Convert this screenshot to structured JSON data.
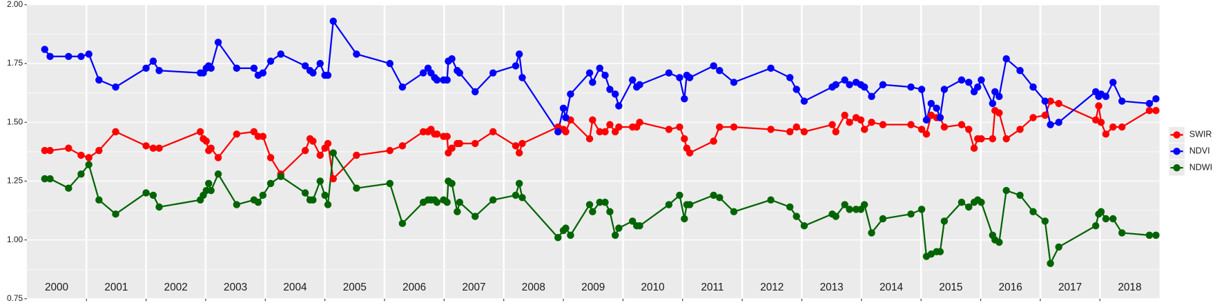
{
  "chart_data": {
    "type": "line",
    "x": [
      2000.3,
      2000.39,
      2000.7,
      2000.91,
      2001.04,
      2001.21,
      2001.49,
      2002.0,
      2002.12,
      2002.22,
      2002.91,
      2002.96,
      2003.01,
      2003.05,
      2003.09,
      2003.21,
      2003.52,
      2003.81,
      2003.88,
      2003.96,
      2004.09,
      2004.26,
      2004.67,
      2004.75,
      2004.8,
      2004.92,
      2005.0,
      2005.05,
      2005.14,
      2005.53,
      2006.09,
      2006.3,
      2006.65,
      2006.73,
      2006.78,
      2006.84,
      2006.88,
      2006.99,
      2007.05,
      2007.07,
      2007.13,
      2007.22,
      2007.26,
      2007.52,
      2007.82,
      2008.2,
      2008.26,
      2008.31,
      2008.91,
      2009.0,
      2009.04,
      2009.12,
      2009.44,
      2009.49,
      2009.61,
      2009.7,
      2009.78,
      2009.87,
      2009.93,
      2010.16,
      2010.23,
      2010.28,
      2010.77,
      2010.95,
      2011.03,
      2011.07,
      2011.12,
      2011.52,
      2011.62,
      2011.86,
      2012.48,
      2012.8,
      2012.91,
      2013.04,
      2013.51,
      2013.57,
      2013.72,
      2013.8,
      2013.91,
      2013.99,
      2014.05,
      2014.17,
      2014.36,
      2014.83,
      2015.01,
      2015.09,
      2015.17,
      2015.26,
      2015.32,
      2015.39,
      2015.68,
      2015.8,
      2015.89,
      2015.95,
      2016.01,
      2016.2,
      2016.24,
      2016.31,
      2016.43,
      2016.66,
      2016.88,
      2017.08,
      2017.17,
      2017.31,
      2017.93,
      2017.98,
      2018.02,
      2018.1,
      2018.22,
      2018.37,
      2018.83,
      2018.94
    ],
    "series": [
      {
        "name": "SWIR",
        "color": "#ff0000",
        "values": [
          1.38,
          1.38,
          1.39,
          1.36,
          1.35,
          1.38,
          1.46,
          1.4,
          1.39,
          1.39,
          1.46,
          1.43,
          1.42,
          1.38,
          1.39,
          1.35,
          1.45,
          1.46,
          1.44,
          1.44,
          1.35,
          1.28,
          1.38,
          1.43,
          1.42,
          1.36,
          1.39,
          1.41,
          1.26,
          1.36,
          1.38,
          1.4,
          1.46,
          1.46,
          1.47,
          1.45,
          1.45,
          1.44,
          1.44,
          1.37,
          1.39,
          1.41,
          1.41,
          1.41,
          1.46,
          1.4,
          1.37,
          1.41,
          1.48,
          1.47,
          1.46,
          1.51,
          1.43,
          1.51,
          1.46,
          1.46,
          1.49,
          1.46,
          1.48,
          1.48,
          1.48,
          1.5,
          1.47,
          1.48,
          1.43,
          1.39,
          1.37,
          1.42,
          1.48,
          1.48,
          1.47,
          1.46,
          1.48,
          1.46,
          1.49,
          1.46,
          1.53,
          1.5,
          1.52,
          1.51,
          1.47,
          1.5,
          1.49,
          1.49,
          1.47,
          1.45,
          1.53,
          1.52,
          1.52,
          1.48,
          1.49,
          1.47,
          1.39,
          1.43,
          1.43,
          1.43,
          1.55,
          1.54,
          1.43,
          1.47,
          1.52,
          1.53,
          1.59,
          1.58,
          1.51,
          1.57,
          1.5,
          1.45,
          1.48,
          1.48,
          1.55,
          1.55
        ]
      },
      {
        "name": "NDVI",
        "color": "#0000ff",
        "values": [
          1.81,
          1.78,
          1.78,
          1.78,
          1.79,
          1.68,
          1.65,
          1.73,
          1.76,
          1.72,
          1.71,
          1.71,
          1.73,
          1.74,
          1.73,
          1.84,
          1.73,
          1.73,
          1.7,
          1.71,
          1.76,
          1.79,
          1.74,
          1.72,
          1.71,
          1.75,
          1.7,
          1.7,
          1.93,
          1.79,
          1.75,
          1.65,
          1.71,
          1.73,
          1.71,
          1.69,
          1.68,
          1.68,
          1.68,
          1.76,
          1.77,
          1.72,
          1.71,
          1.63,
          1.71,
          1.74,
          1.79,
          1.69,
          1.46,
          1.56,
          1.52,
          1.62,
          1.71,
          1.67,
          1.73,
          1.7,
          1.64,
          1.62,
          1.57,
          1.68,
          1.65,
          1.66,
          1.71,
          1.69,
          1.6,
          1.7,
          1.69,
          1.74,
          1.72,
          1.67,
          1.73,
          1.69,
          1.64,
          1.59,
          1.65,
          1.66,
          1.68,
          1.66,
          1.67,
          1.66,
          1.65,
          1.61,
          1.66,
          1.65,
          1.64,
          1.51,
          1.58,
          1.56,
          1.52,
          1.64,
          1.68,
          1.67,
          1.63,
          1.65,
          1.68,
          1.58,
          1.63,
          1.61,
          1.77,
          1.72,
          1.65,
          1.59,
          1.49,
          1.5,
          1.63,
          1.61,
          1.62,
          1.61,
          1.67,
          1.59,
          1.58,
          1.6
        ]
      },
      {
        "name": "NDWI",
        "color": "#006400",
        "values": [
          1.26,
          1.26,
          1.22,
          1.28,
          1.32,
          1.17,
          1.11,
          1.2,
          1.19,
          1.14,
          1.17,
          1.19,
          1.21,
          1.24,
          1.21,
          1.28,
          1.15,
          1.17,
          1.16,
          1.19,
          1.24,
          1.27,
          1.2,
          1.17,
          1.17,
          1.25,
          1.19,
          1.15,
          1.37,
          1.22,
          1.24,
          1.07,
          1.16,
          1.17,
          1.17,
          1.17,
          1.16,
          1.17,
          1.16,
          1.25,
          1.24,
          1.12,
          1.16,
          1.1,
          1.17,
          1.19,
          1.24,
          1.18,
          1.01,
          1.04,
          1.05,
          1.02,
          1.15,
          1.12,
          1.16,
          1.16,
          1.12,
          1.02,
          1.05,
          1.08,
          1.06,
          1.06,
          1.15,
          1.19,
          1.09,
          1.15,
          1.15,
          1.19,
          1.18,
          1.12,
          1.17,
          1.14,
          1.1,
          1.06,
          1.11,
          1.1,
          1.15,
          1.13,
          1.13,
          1.13,
          1.15,
          1.03,
          1.09,
          1.11,
          1.13,
          0.93,
          0.94,
          0.95,
          0.95,
          1.08,
          1.16,
          1.14,
          1.16,
          1.17,
          1.16,
          1.02,
          1.0,
          0.99,
          1.21,
          1.19,
          1.12,
          1.08,
          0.9,
          0.97,
          1.06,
          1.11,
          1.12,
          1.09,
          1.09,
          1.03,
          1.02,
          1.02
        ]
      }
    ],
    "xlim": [
      2000,
      2019
    ],
    "xticks": [
      2000,
      2001,
      2002,
      2003,
      2004,
      2005,
      2006,
      2007,
      2008,
      2009,
      2010,
      2011,
      2012,
      2013,
      2014,
      2015,
      2016,
      2017,
      2018
    ],
    "ylim": [
      0.75,
      2.0
    ],
    "yticks": [
      {
        "value": 0.75,
        "label": "0.75"
      },
      {
        "value": 1.0,
        "label": "1.00"
      },
      {
        "value": 1.25,
        "label": "1.25"
      },
      {
        "value": 1.5,
        "label": "1.50"
      },
      {
        "value": 1.75,
        "label": "1.75"
      },
      {
        "value": 2.0,
        "label": "2.00"
      }
    ],
    "grid": true,
    "legend": "right"
  }
}
